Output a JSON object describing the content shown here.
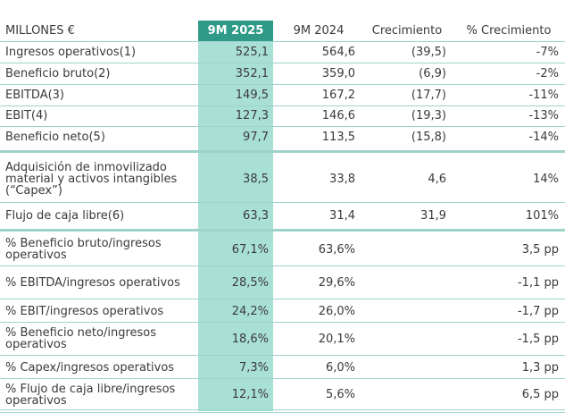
{
  "table": {
    "header": [
      "MILLONES €",
      "9M 2025",
      "9M 2024",
      "Crecimiento",
      "% Crecimiento"
    ],
    "rows": [
      [
        "Ingresos operativos(1)",
        "525,1",
        "564,6",
        "(39,5)",
        "-7%"
      ],
      [
        "Beneficio bruto(2)",
        "352,1",
        "359,0",
        "(6,9)",
        "-2%"
      ],
      [
        "EBITDA(3)",
        "149,5",
        "167,2",
        "(17,7)",
        "-11%"
      ],
      [
        "EBIT(4)",
        "127,3",
        "146,6",
        "(19,3)",
        "-13%"
      ],
      [
        "Beneficio neto(5)",
        "97,7",
        "113,5",
        "(15,8)",
        "-14%"
      ],
      [
        "Adquisición de inmovilizado material y activos intangibles (“Capex”)",
        "38,5",
        "33,8",
        "4,6",
        "14%"
      ],
      [
        "Flujo de caja libre(6)",
        "63,3",
        "31,4",
        "31,9",
        "101%"
      ],
      [
        "% Beneficio bruto/ingresos operativos",
        "67,1%",
        "63,6%",
        "",
        "3,5 pp"
      ],
      [
        "% EBITDA/ingresos operativos",
        "28,5%",
        "29,6%",
        "",
        "-1,1 pp"
      ],
      [
        "% EBIT/ingresos operativos",
        "24,2%",
        "26,0%",
        "",
        "-1,7 pp"
      ],
      [
        "% Beneficio neto/ingresos operativos",
        "18,6%",
        "20,1%",
        "",
        "-1,5 pp"
      ],
      [
        "% Capex/ingresos operativos",
        "7,3%",
        "6,0%",
        "",
        "1,3 pp"
      ],
      [
        "% Flujo de caja libre/ingresos operativos",
        "12,1%",
        "5,6%",
        "",
        "6,5 pp"
      ]
    ]
  }
}
